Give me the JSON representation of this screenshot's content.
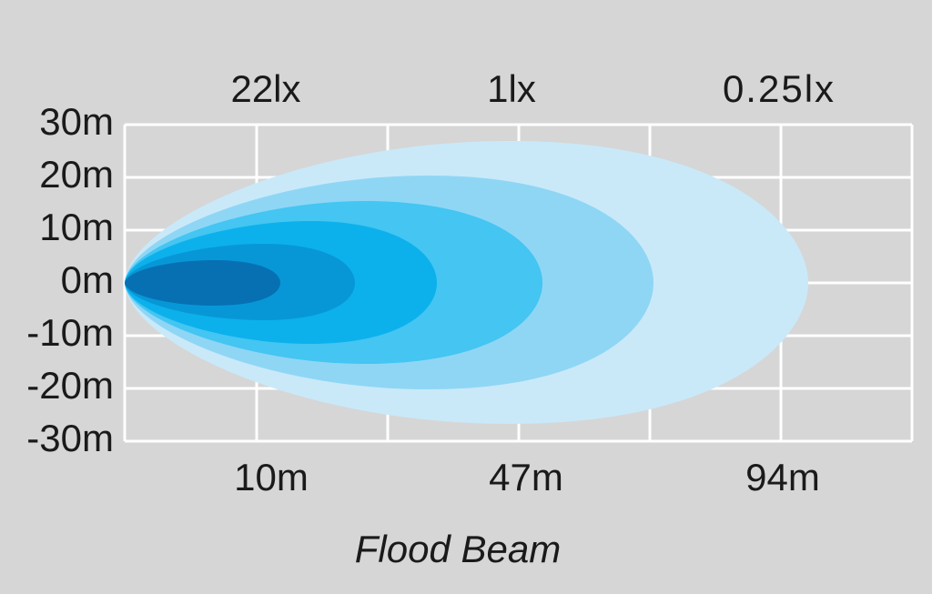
{
  "title": "Flood Beam",
  "y_axis": {
    "labels": [
      "30m",
      "20m",
      "10m",
      "0m",
      "-10m",
      "-20m",
      "-30m"
    ]
  },
  "top_labels": [
    "22lx",
    "1lx",
    "0.25lx"
  ],
  "bottom_labels": [
    "10m",
    "47m",
    "94m"
  ]
}
